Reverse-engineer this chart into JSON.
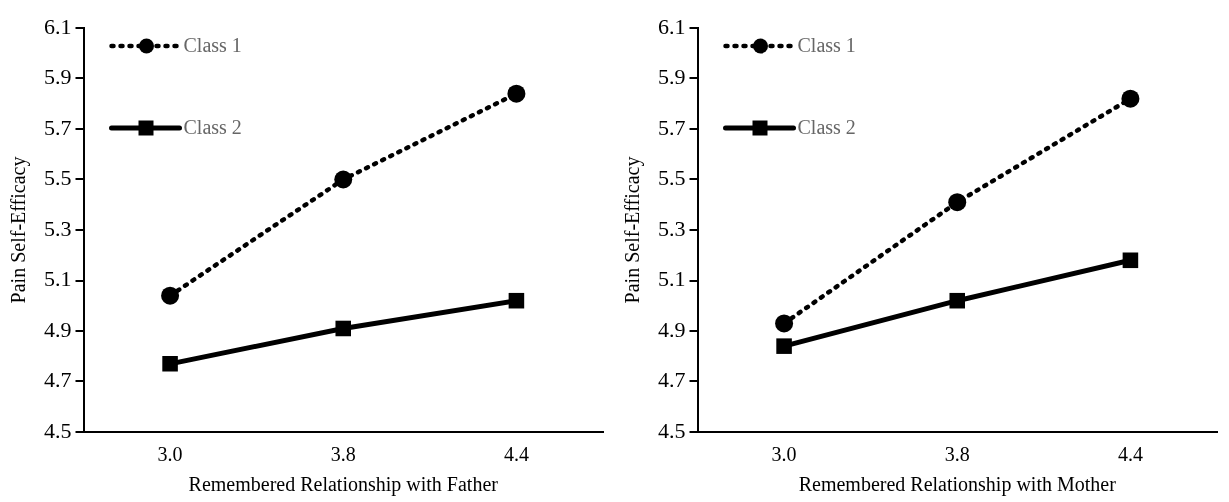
{
  "chart_data": [
    {
      "type": "line",
      "xlabel": "Remembered Relationship with Father",
      "ylabel": "Pain Self-Efficacy",
      "categories": [
        "3.0",
        "3.8",
        "4.4"
      ],
      "ylim": [
        4.5,
        6.1
      ],
      "yticks": [
        4.5,
        4.7,
        4.9,
        5.1,
        5.3,
        5.5,
        5.7,
        5.9,
        6.1
      ],
      "grid": false,
      "legend": "top left",
      "series": [
        {
          "name": "Class 1",
          "color": "#000000",
          "values": [
            5.04,
            5.5,
            5.84
          ],
          "marker": "circle",
          "line_style": "dotted"
        },
        {
          "name": "Class 2",
          "color": "#000000",
          "values": [
            4.77,
            4.91,
            5.02
          ],
          "marker": "square",
          "line_style": "solid"
        }
      ]
    },
    {
      "type": "line",
      "xlabel": "Remembered Relationship with Mother",
      "ylabel": "Pain Self-Efficacy",
      "categories": [
        "3.0",
        "3.8",
        "4.4"
      ],
      "ylim": [
        4.5,
        6.1
      ],
      "yticks": [
        4.5,
        4.7,
        4.9,
        5.1,
        5.3,
        5.5,
        5.7,
        5.9,
        6.1
      ],
      "grid": false,
      "legend": "top left",
      "series": [
        {
          "name": "Class 1",
          "color": "#000000",
          "values": [
            4.93,
            5.41,
            5.82
          ],
          "marker": "circle",
          "line_style": "dotted"
        },
        {
          "name": "Class 2",
          "color": "#000000",
          "values": [
            4.84,
            5.02,
            5.18
          ],
          "marker": "square",
          "line_style": "solid"
        }
      ]
    }
  ]
}
